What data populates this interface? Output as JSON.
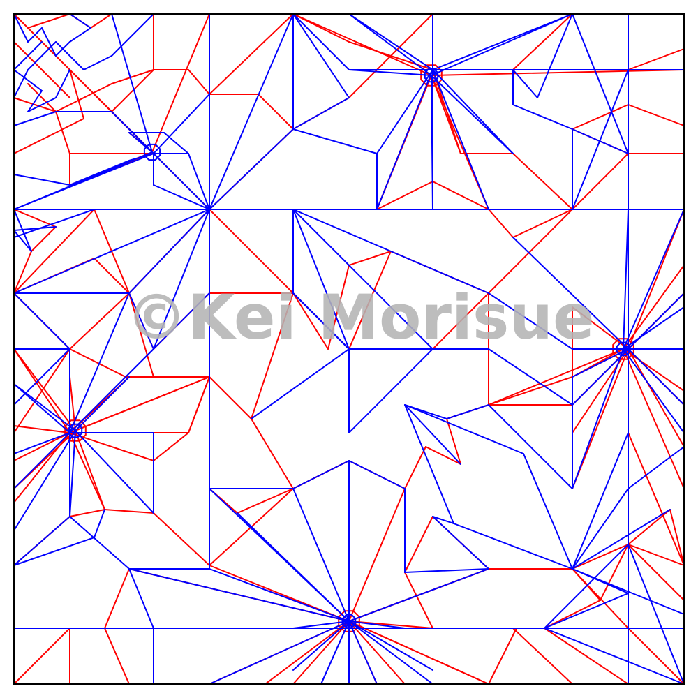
{
  "diagram": {
    "kind": "origami-crease-pattern",
    "colors": {
      "mountain": "#ff0000",
      "valley": "#0000ff",
      "border": "#000000",
      "watermark": "#b4b4b4"
    },
    "watermark": "©Kei Morisue"
  }
}
